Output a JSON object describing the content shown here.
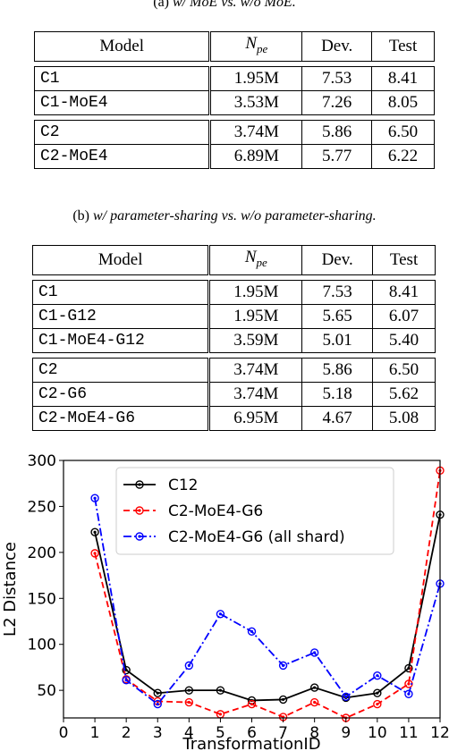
{
  "caption_a": {
    "prefix": "(a) ",
    "text": "w/ MoE vs. w/o MoE."
  },
  "caption_b": {
    "prefix": "(b) ",
    "text": "w/ parameter-sharing vs. w/o parameter-sharing."
  },
  "table_a": {
    "headers": {
      "model": "Model",
      "npe_base": "N",
      "npe_sub": "pe",
      "dev": "Dev.",
      "test": "Test"
    },
    "rows": [
      {
        "model": "C1",
        "npe": "1.95M",
        "dev": "7.53",
        "test": "8.41"
      },
      {
        "model": "C1-MoE4",
        "npe": "3.53M",
        "dev": "7.26",
        "test": "8.05"
      },
      {
        "model": "C2",
        "npe": "3.74M",
        "dev": "5.86",
        "test": "6.50"
      },
      {
        "model": "C2-MoE4",
        "npe": "6.89M",
        "dev": "5.77",
        "test": "6.22"
      }
    ]
  },
  "table_b": {
    "headers": {
      "model": "Model",
      "npe_base": "N",
      "npe_sub": "pe",
      "dev": "Dev.",
      "test": "Test"
    },
    "rows": [
      {
        "model": "C1",
        "npe": "1.95M",
        "dev": "7.53",
        "test": "8.41"
      },
      {
        "model": "C1-G12",
        "npe": "1.95M",
        "dev": "5.65",
        "test": "6.07"
      },
      {
        "model": "C1-MoE4-G12",
        "npe": "3.59M",
        "dev": "5.01",
        "test": "5.40"
      },
      {
        "model": "C2",
        "npe": "3.74M",
        "dev": "5.86",
        "test": "6.50"
      },
      {
        "model": "C2-G6",
        "npe": "3.74M",
        "dev": "5.18",
        "test": "5.62"
      },
      {
        "model": "C2-MoE4-G6",
        "npe": "6.95M",
        "dev": "4.67",
        "test": "5.08"
      }
    ]
  },
  "chart_data": {
    "type": "line",
    "xlabel": "TransformationID",
    "ylabel": "L2 Distance",
    "xlim": [
      0,
      12
    ],
    "ylim": [
      20,
      300
    ],
    "xticks": [
      0,
      1,
      2,
      3,
      4,
      5,
      6,
      7,
      8,
      9,
      10,
      11,
      12
    ],
    "yticks": [
      50,
      100,
      150,
      200,
      250,
      300
    ],
    "legend_position": "top-center",
    "x": [
      1,
      2,
      3,
      4,
      5,
      6,
      7,
      8,
      9,
      10,
      11,
      12
    ],
    "series": [
      {
        "name": "C12",
        "color": "#000000",
        "style": "solid",
        "values": [
          222,
          72,
          47,
          50,
          50,
          39,
          40,
          53,
          42,
          47,
          74,
          241
        ]
      },
      {
        "name": "C2-MoE4-G6",
        "color": "#ff0000",
        "style": "dashed",
        "values": [
          199,
          62,
          38,
          37,
          24,
          35,
          21,
          37,
          20,
          35,
          57,
          289
        ]
      },
      {
        "name": "C2-MoE4-G6 (all shard)",
        "color": "#0000ff",
        "style": "dashdot",
        "values": [
          259,
          61,
          35,
          77,
          133,
          114,
          77,
          91,
          43,
          66,
          46,
          166
        ]
      }
    ]
  }
}
